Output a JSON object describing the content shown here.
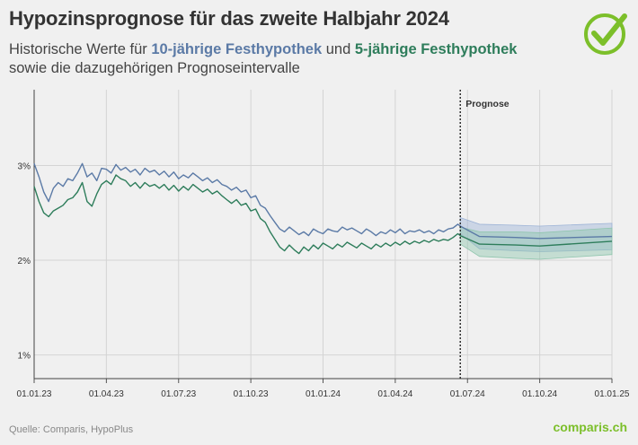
{
  "header": {
    "title": "Hypozinsprognose für das zweite Halbjahr 2024",
    "subtitle_part1": "Historische Werte für ",
    "subtitle_10y": "10-jährige Festhypothek",
    "subtitle_part2": " und ",
    "subtitle_5y": "5-jährige Festhypothek",
    "subtitle_part3": " sowie die dazugehörigen Prognoseintervalle"
  },
  "footer": {
    "source": "Quelle: Comparis, HypoPlus",
    "brand": "comparis.ch"
  },
  "colors": {
    "series_10y": "#5b7aa6",
    "series_5y": "#2e7d5b",
    "band_10y": "#9db3d6",
    "band_5y": "#8fc5ad",
    "check": "#7cbf2a"
  },
  "chart_data": {
    "type": "line",
    "title": "Hypozinsprognose für das zweite Halbjahr 2024",
    "xlabel": "",
    "ylabel": "",
    "x_ticks": [
      "01.01.23",
      "01.04.23",
      "01.07.23",
      "01.10.23",
      "01.01.24",
      "01.04.24",
      "01.07.24",
      "01.10.24",
      "01.01.25"
    ],
    "y_ticks": [
      "1%",
      "2%",
      "3%"
    ],
    "y_tick_values": [
      1,
      2,
      3
    ],
    "ylim": [
      0.75,
      3.8
    ],
    "xlim_months": [
      0,
      24
    ],
    "grid": true,
    "forecast_start_month": 17.7,
    "forecast_label": "Prognose",
    "series": [
      {
        "name": "10-jährige Festhypothek",
        "points": [
          [
            0.0,
            3.02
          ],
          [
            0.2,
            2.88
          ],
          [
            0.4,
            2.72
          ],
          [
            0.6,
            2.62
          ],
          [
            0.8,
            2.76
          ],
          [
            1.0,
            2.82
          ],
          [
            1.2,
            2.78
          ],
          [
            1.4,
            2.86
          ],
          [
            1.6,
            2.84
          ],
          [
            1.8,
            2.92
          ],
          [
            2.0,
            3.02
          ],
          [
            2.2,
            2.88
          ],
          [
            2.4,
            2.92
          ],
          [
            2.6,
            2.84
          ],
          [
            2.8,
            2.97
          ],
          [
            3.0,
            2.96
          ],
          [
            3.2,
            2.92
          ],
          [
            3.4,
            3.01
          ],
          [
            3.6,
            2.95
          ],
          [
            3.8,
            2.98
          ],
          [
            4.0,
            2.93
          ],
          [
            4.2,
            2.96
          ],
          [
            4.4,
            2.9
          ],
          [
            4.6,
            2.97
          ],
          [
            4.8,
            2.93
          ],
          [
            5.0,
            2.95
          ],
          [
            5.2,
            2.9
          ],
          [
            5.4,
            2.94
          ],
          [
            5.6,
            2.88
          ],
          [
            5.8,
            2.93
          ],
          [
            6.0,
            2.86
          ],
          [
            6.2,
            2.9
          ],
          [
            6.4,
            2.87
          ],
          [
            6.6,
            2.92
          ],
          [
            6.8,
            2.88
          ],
          [
            7.0,
            2.84
          ],
          [
            7.2,
            2.87
          ],
          [
            7.4,
            2.82
          ],
          [
            7.6,
            2.85
          ],
          [
            7.8,
            2.8
          ],
          [
            8.0,
            2.78
          ],
          [
            8.2,
            2.74
          ],
          [
            8.4,
            2.77
          ],
          [
            8.6,
            2.72
          ],
          [
            8.8,
            2.74
          ],
          [
            9.0,
            2.66
          ],
          [
            9.2,
            2.68
          ],
          [
            9.4,
            2.58
          ],
          [
            9.6,
            2.55
          ],
          [
            9.8,
            2.47
          ],
          [
            10.0,
            2.4
          ],
          [
            10.2,
            2.33
          ],
          [
            10.4,
            2.3
          ],
          [
            10.6,
            2.35
          ],
          [
            10.8,
            2.31
          ],
          [
            11.0,
            2.27
          ],
          [
            11.2,
            2.3
          ],
          [
            11.4,
            2.26
          ],
          [
            11.6,
            2.33
          ],
          [
            11.8,
            2.3
          ],
          [
            12.0,
            2.28
          ],
          [
            12.2,
            2.33
          ],
          [
            12.4,
            2.31
          ],
          [
            12.6,
            2.3
          ],
          [
            12.8,
            2.35
          ],
          [
            13.0,
            2.32
          ],
          [
            13.2,
            2.34
          ],
          [
            13.4,
            2.31
          ],
          [
            13.6,
            2.28
          ],
          [
            13.8,
            2.33
          ],
          [
            14.0,
            2.3
          ],
          [
            14.2,
            2.26
          ],
          [
            14.4,
            2.3
          ],
          [
            14.6,
            2.28
          ],
          [
            14.8,
            2.32
          ],
          [
            15.0,
            2.29
          ],
          [
            15.2,
            2.33
          ],
          [
            15.4,
            2.28
          ],
          [
            15.6,
            2.31
          ],
          [
            15.8,
            2.3
          ],
          [
            16.0,
            2.32
          ],
          [
            16.2,
            2.29
          ],
          [
            16.4,
            2.31
          ],
          [
            16.6,
            2.28
          ],
          [
            16.8,
            2.32
          ],
          [
            17.0,
            2.3
          ],
          [
            17.2,
            2.33
          ],
          [
            17.4,
            2.34
          ],
          [
            17.6,
            2.38
          ],
          [
            17.7,
            2.36
          ],
          [
            18.5,
            2.25
          ],
          [
            20.0,
            2.24
          ],
          [
            21.0,
            2.23
          ],
          [
            24.0,
            2.25
          ]
        ],
        "forecast_lower": [
          [
            17.7,
            2.28
          ],
          [
            18.5,
            2.12
          ],
          [
            20.0,
            2.1
          ],
          [
            21.0,
            2.09
          ],
          [
            24.0,
            2.11
          ]
        ],
        "forecast_upper": [
          [
            17.7,
            2.45
          ],
          [
            18.5,
            2.38
          ],
          [
            20.0,
            2.37
          ],
          [
            21.0,
            2.36
          ],
          [
            24.0,
            2.39
          ]
        ]
      },
      {
        "name": "5-jährige Festhypothek",
        "points": [
          [
            0.0,
            2.78
          ],
          [
            0.2,
            2.62
          ],
          [
            0.4,
            2.5
          ],
          [
            0.6,
            2.46
          ],
          [
            0.8,
            2.52
          ],
          [
            1.0,
            2.55
          ],
          [
            1.2,
            2.58
          ],
          [
            1.4,
            2.64
          ],
          [
            1.6,
            2.66
          ],
          [
            1.8,
            2.72
          ],
          [
            2.0,
            2.82
          ],
          [
            2.2,
            2.62
          ],
          [
            2.4,
            2.57
          ],
          [
            2.6,
            2.7
          ],
          [
            2.8,
            2.8
          ],
          [
            3.0,
            2.84
          ],
          [
            3.2,
            2.8
          ],
          [
            3.4,
            2.9
          ],
          [
            3.6,
            2.86
          ],
          [
            3.8,
            2.84
          ],
          [
            4.0,
            2.78
          ],
          [
            4.2,
            2.82
          ],
          [
            4.4,
            2.76
          ],
          [
            4.6,
            2.82
          ],
          [
            4.8,
            2.78
          ],
          [
            5.0,
            2.8
          ],
          [
            5.2,
            2.76
          ],
          [
            5.4,
            2.8
          ],
          [
            5.6,
            2.74
          ],
          [
            5.8,
            2.79
          ],
          [
            6.0,
            2.73
          ],
          [
            6.2,
            2.78
          ],
          [
            6.4,
            2.74
          ],
          [
            6.6,
            2.8
          ],
          [
            6.8,
            2.76
          ],
          [
            7.0,
            2.72
          ],
          [
            7.2,
            2.75
          ],
          [
            7.4,
            2.7
          ],
          [
            7.6,
            2.73
          ],
          [
            7.8,
            2.68
          ],
          [
            8.0,
            2.64
          ],
          [
            8.2,
            2.6
          ],
          [
            8.4,
            2.64
          ],
          [
            8.6,
            2.58
          ],
          [
            8.8,
            2.6
          ],
          [
            9.0,
            2.52
          ],
          [
            9.2,
            2.54
          ],
          [
            9.4,
            2.44
          ],
          [
            9.6,
            2.4
          ],
          [
            9.8,
            2.3
          ],
          [
            10.0,
            2.22
          ],
          [
            10.2,
            2.14
          ],
          [
            10.4,
            2.1
          ],
          [
            10.6,
            2.16
          ],
          [
            10.8,
            2.11
          ],
          [
            11.0,
            2.07
          ],
          [
            11.2,
            2.14
          ],
          [
            11.4,
            2.1
          ],
          [
            11.6,
            2.16
          ],
          [
            11.8,
            2.12
          ],
          [
            12.0,
            2.18
          ],
          [
            12.2,
            2.15
          ],
          [
            12.4,
            2.12
          ],
          [
            12.6,
            2.17
          ],
          [
            12.8,
            2.14
          ],
          [
            13.0,
            2.19
          ],
          [
            13.2,
            2.16
          ],
          [
            13.4,
            2.13
          ],
          [
            13.6,
            2.18
          ],
          [
            13.8,
            2.15
          ],
          [
            14.0,
            2.12
          ],
          [
            14.2,
            2.17
          ],
          [
            14.4,
            2.14
          ],
          [
            14.6,
            2.18
          ],
          [
            14.8,
            2.15
          ],
          [
            15.0,
            2.19
          ],
          [
            15.2,
            2.16
          ],
          [
            15.4,
            2.2
          ],
          [
            15.6,
            2.17
          ],
          [
            15.8,
            2.2
          ],
          [
            16.0,
            2.18
          ],
          [
            16.2,
            2.21
          ],
          [
            16.4,
            2.19
          ],
          [
            16.6,
            2.22
          ],
          [
            16.8,
            2.2
          ],
          [
            17.0,
            2.22
          ],
          [
            17.2,
            2.21
          ],
          [
            17.4,
            2.24
          ],
          [
            17.6,
            2.28
          ],
          [
            17.7,
            2.26
          ],
          [
            18.5,
            2.17
          ],
          [
            20.0,
            2.16
          ],
          [
            21.0,
            2.15
          ],
          [
            24.0,
            2.2
          ]
        ],
        "forecast_lower": [
          [
            17.7,
            2.17
          ],
          [
            18.5,
            2.04
          ],
          [
            20.0,
            2.02
          ],
          [
            21.0,
            2.01
          ],
          [
            24.0,
            2.06
          ]
        ],
        "forecast_upper": [
          [
            17.7,
            2.35
          ],
          [
            18.5,
            2.3
          ],
          [
            20.0,
            2.3
          ],
          [
            21.0,
            2.29
          ],
          [
            24.0,
            2.34
          ]
        ]
      }
    ]
  }
}
